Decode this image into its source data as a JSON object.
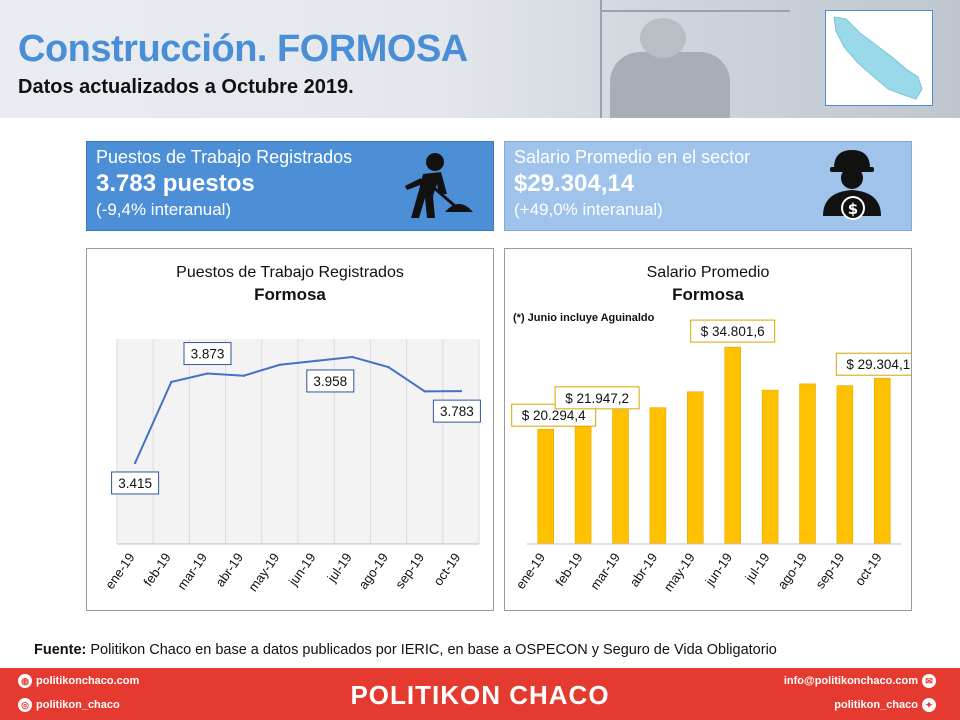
{
  "header": {
    "title": "Construcción. FORMOSA",
    "subtitle": "Datos actualizados a Octubre 2019."
  },
  "kpis": [
    {
      "label": "Puestos de Trabajo Registrados",
      "value": "3.783 puestos",
      "change": "(-9,4% interanual)",
      "icon": "construction-worker-shovel-icon"
    },
    {
      "label": "Salario Promedio en el sector",
      "value": "$29.304,14",
      "change": "(+49,0% interanual)",
      "icon": "worker-money-icon"
    }
  ],
  "chart_data": [
    {
      "type": "line",
      "title": "Puestos de Trabajo Registrados",
      "subtitle": "Formosa",
      "categories": [
        "ene-19",
        "feb-19",
        "mar-19",
        "abr-19",
        "may-19",
        "jun-19",
        "jul-19",
        "ago-19",
        "sep-19",
        "oct-19"
      ],
      "values": [
        3415,
        3830,
        3873,
        3862,
        3918,
        3938,
        3958,
        3906,
        3782,
        3783
      ],
      "data_labels": [
        {
          "index": 0,
          "text": "3.415"
        },
        {
          "index": 2,
          "text": "3.873"
        },
        {
          "index": 6,
          "text": "3.958"
        },
        {
          "index": 9,
          "text": "3.783"
        }
      ],
      "ylim": [
        3000,
        4050
      ],
      "line_color": "#4472c4",
      "grid": "vertical"
    },
    {
      "type": "bar",
      "title": "Salario Promedio",
      "subtitle": "Formosa",
      "note": "(*) Junio incluye Aguinaldo",
      "categories": [
        "ene-19",
        "feb-19",
        "mar-19",
        "abr-19",
        "may-19",
        "jun-19",
        "jul-19",
        "ago-19",
        "sep-19",
        "oct-19"
      ],
      "values": [
        20294.4,
        21947.2,
        23700,
        24100,
        26900,
        34801.6,
        27200,
        28300,
        28000,
        29304.1
      ],
      "data_labels": [
        {
          "index": 0,
          "text": "$ 20.294,4"
        },
        {
          "index": 1,
          "text": "$ 21.947,2"
        },
        {
          "index": 5,
          "text": "$ 34.801,6"
        },
        {
          "index": 9,
          "text": "$ 29.304,1"
        }
      ],
      "ylim": [
        0,
        38000
      ],
      "bar_color": "#ffc000",
      "grid": "none"
    }
  ],
  "footer": {
    "source_label": "Fuente:",
    "source_text": " Politikon Chaco en base a datos publicados por IERIC,  en base a OSPECON y Seguro de Vida Obligatorio",
    "brand": "POLITIKON CHACO",
    "web": "politikonchaco.com",
    "instagram": "politikon_chaco",
    "email": "info@politikonchaco.com",
    "twitter": "politikon_chaco"
  },
  "colors": {
    "accent": "#4a8ed6",
    "brand_red": "#e53a2f",
    "kpi1": "#4d8fd6",
    "kpi2": "#9fc3ea"
  }
}
